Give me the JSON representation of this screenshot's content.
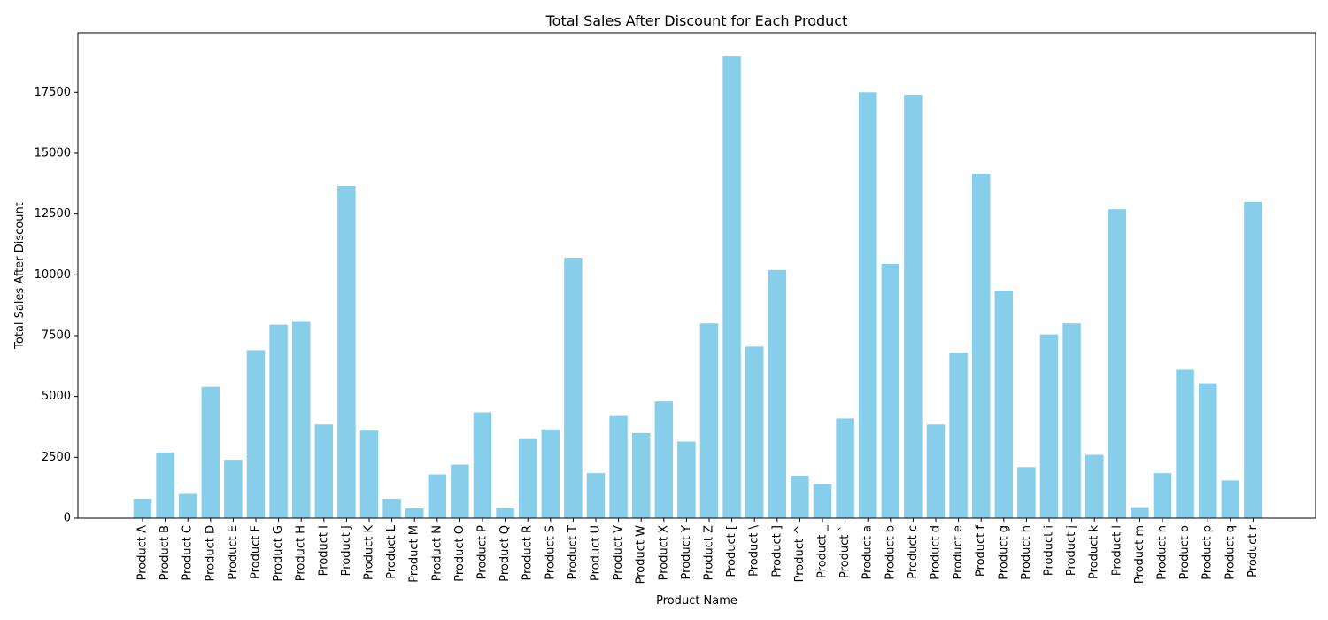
{
  "chart_data": {
    "type": "bar",
    "title": "Total Sales After Discount for Each Product",
    "xlabel": "Product Name",
    "ylabel": "Total Sales After Discount",
    "bar_color": "#87CEEB",
    "grid": false,
    "ylim": [
      0,
      19950
    ],
    "yticks": [
      0,
      2500,
      5000,
      7500,
      10000,
      12500,
      15000,
      17500
    ],
    "categories": [
      "Product A",
      "Product B",
      "Product C",
      "Product D",
      "Product E",
      "Product F",
      "Product G",
      "Product H",
      "Product I",
      "Product J",
      "Product K",
      "Product L",
      "Product M",
      "Product N",
      "Product O",
      "Product P",
      "Product Q",
      "Product R",
      "Product S",
      "Product T",
      "Product U",
      "Product V",
      "Product W",
      "Product X",
      "Product Y",
      "Product Z",
      "Product [",
      "Product \\",
      "Product ]",
      "Product ^",
      "Product _",
      "Product `",
      "Product a",
      "Product b",
      "Product c",
      "Product d",
      "Product e",
      "Product f",
      "Product g",
      "Product h",
      "Product i",
      "Product j",
      "Product k",
      "Product l",
      "Product m",
      "Product n",
      "Product o",
      "Product p",
      "Product q",
      "Product r"
    ],
    "values": [
      800,
      2700,
      1000,
      5400,
      2400,
      6900,
      7950,
      8100,
      3850,
      13650,
      3600,
      800,
      400,
      1800,
      2200,
      4350,
      400,
      3250,
      3650,
      10700,
      1850,
      4200,
      3500,
      4800,
      3150,
      8000,
      19000,
      7050,
      10200,
      1750,
      1400,
      4100,
      17500,
      10450,
      17400,
      3850,
      6800,
      14150,
      9350,
      2100,
      7550,
      8000,
      2600,
      12700,
      450,
      1850,
      6100,
      5550,
      1550,
      13000
    ]
  }
}
